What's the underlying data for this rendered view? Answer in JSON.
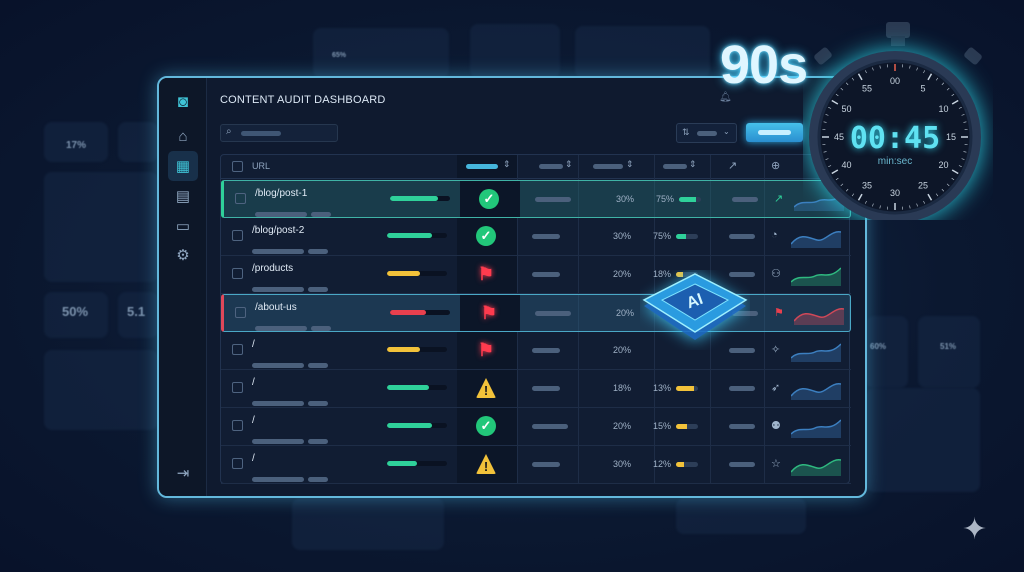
{
  "colors": {
    "accent": "#3fc3d6",
    "green": "#2fd19a",
    "yellow": "#f2c23a",
    "red": "#e8404e",
    "panel_border": "#63b8dc"
  },
  "background": {
    "gauge_left": "17%",
    "stat_left": "50%",
    "stat_left2": "5.1",
    "gauge_right1": "60%",
    "gauge_right2": "51%",
    "gauge_top": "65%"
  },
  "timer": {
    "headline": "90s",
    "display": "00:45",
    "unit": "min:sec",
    "dial": [
      "00",
      "5",
      "10",
      "15",
      "20",
      "25",
      "30",
      "35",
      "40",
      "45",
      "50",
      "55"
    ],
    "elapsed_fraction": 0.5
  },
  "app": {
    "title": "CONTENT AUDIT DASHBOARD"
  },
  "sidebar": {
    "items": [
      {
        "icon": "logo-icon"
      },
      {
        "icon": "home-icon"
      },
      {
        "icon": "grid-icon",
        "active": true
      },
      {
        "icon": "document-icon"
      },
      {
        "icon": "card-icon"
      },
      {
        "icon": "gear-icon"
      },
      {
        "icon": "logout-icon"
      }
    ]
  },
  "table": {
    "header": {
      "url": "URL"
    },
    "rows": [
      {
        "url": "/blog/post-1",
        "score": 0.8,
        "score_color": "#2fd19a",
        "status": "check",
        "col4": "30%",
        "col5": "75%",
        "col5_fill": 0.75,
        "col5_color": "#2fd19a",
        "icon": "trend-icon",
        "spark": "#3c7fc0",
        "highlight": "green"
      },
      {
        "url": "/blog/post-2",
        "score": 0.75,
        "score_color": "#2fd19a",
        "status": "check",
        "col4": "30%",
        "col5": "75%",
        "col5_fill": 0.45,
        "col5_color": "#2fd19a",
        "icon": "gauge-icon",
        "spark": "#3c7fc0"
      },
      {
        "url": "/products",
        "score": 0.55,
        "score_color": "#f2c23a",
        "status": "flag",
        "col4": "20%",
        "col5": "18%",
        "col5_fill": 0.3,
        "col5_color": "#f2c23a",
        "icon": "users-icon",
        "spark": "#2fb980"
      },
      {
        "url": "/about-us",
        "score": 0.6,
        "score_color": "#e8404e",
        "status": "flag",
        "col4": "20%",
        "col5": "",
        "col5_fill": 0,
        "col5_color": "#f2c23a",
        "icon": "flag-icon",
        "spark": "#d04858",
        "highlight": "red"
      },
      {
        "url": "/",
        "score": 0.55,
        "score_color": "#f2c23a",
        "status": "flag",
        "col4": "20%",
        "col5": "",
        "col5_fill": 0,
        "col5_color": "#f2c23a",
        "icon": "puzzle-icon",
        "spark": "#3c7fc0"
      },
      {
        "url": "/",
        "score": 0.7,
        "score_color": "#2fd19a",
        "status": "warning",
        "col4": "18%",
        "col5": "13%",
        "col5_fill": 0.8,
        "col5_color": "#f2c23a",
        "icon": "rocket-icon",
        "spark": "#3c7fc0"
      },
      {
        "url": "/",
        "score": 0.75,
        "score_color": "#2fd19a",
        "status": "check",
        "col4": "20%",
        "col5": "15%",
        "col5_fill": 0.5,
        "col5_color": "#f2c23a",
        "icon": "people-icon",
        "spark": "#3c7fc0"
      },
      {
        "url": "/",
        "score": 0.5,
        "score_color": "#2fd19a",
        "status": "warning",
        "col4": "30%",
        "col5": "12%",
        "col5_fill": 0.35,
        "col5_color": "#f2c23a",
        "icon": "star-icon",
        "spark": "#2fb980"
      }
    ]
  },
  "chip": {
    "label": "AI"
  }
}
